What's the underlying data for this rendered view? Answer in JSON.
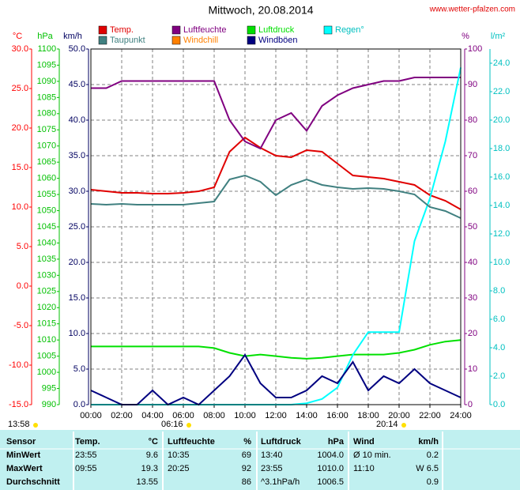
{
  "chart_data": {
    "type": "line",
    "title": "Mittwoch, 20.08.2014",
    "source": "www.wetter-pfalzen.com",
    "x": [
      0,
      1,
      2,
      3,
      4,
      5,
      6,
      7,
      8,
      9,
      10,
      11,
      12,
      13,
      14,
      15,
      16,
      17,
      18,
      19,
      20,
      21,
      22,
      23,
      24
    ],
    "xlim": [
      0,
      24
    ],
    "xticks": [
      {
        "value": 0,
        "label": "00:00"
      },
      {
        "value": 2,
        "label": "02:00"
      },
      {
        "value": 4,
        "label": "04:00"
      },
      {
        "value": 6,
        "label": "06:00"
      },
      {
        "value": 8,
        "label": "08:00"
      },
      {
        "value": 10,
        "label": "10:00"
      },
      {
        "value": 12,
        "label": "12:00"
      },
      {
        "value": 14,
        "label": "14:00"
      },
      {
        "value": 16,
        "label": "16:00"
      },
      {
        "value": 18,
        "label": "18:00"
      },
      {
        "value": 20,
        "label": "20:00"
      },
      {
        "value": 22,
        "label": "22:00"
      },
      {
        "value": 24,
        "label": "24:00"
      }
    ],
    "grid": true,
    "axes": {
      "temp": {
        "label": "°C",
        "color": "#ff0000",
        "lim": [
          -15,
          30
        ],
        "ticks": [
          {
            "value": 30,
            "label": "30.0"
          },
          {
            "value": 25,
            "label": "25.0"
          },
          {
            "value": 20,
            "label": "20.0"
          },
          {
            "value": 15,
            "label": "15.0"
          },
          {
            "value": 10,
            "label": "10.0"
          },
          {
            "value": 5,
            "label": "5.0"
          },
          {
            "value": 0,
            "label": "0.0"
          },
          {
            "value": -5,
            "label": "-5.0"
          },
          {
            "value": -10,
            "label": "-10.0"
          },
          {
            "value": -15,
            "label": "-15.0"
          }
        ]
      },
      "pressure": {
        "label": "hPa",
        "color": "#00c000",
        "lim": [
          990,
          1100
        ],
        "ticks": [
          1100,
          1095,
          1090,
          1085,
          1080,
          1075,
          1070,
          1065,
          1060,
          1055,
          1050,
          1045,
          1040,
          1035,
          1030,
          1025,
          1020,
          1015,
          1010,
          1005,
          1000,
          995,
          990
        ]
      },
      "wind": {
        "label": "km/h",
        "color": "#000060",
        "lim": [
          0,
          50
        ],
        "ticks": [
          {
            "value": 50,
            "label": "50.0"
          },
          {
            "value": 45,
            "label": "45.0"
          },
          {
            "value": 40,
            "label": "40.0"
          },
          {
            "value": 35,
            "label": "35.0"
          },
          {
            "value": 30,
            "label": "30.0"
          },
          {
            "value": 25,
            "label": "25.0"
          },
          {
            "value": 20,
            "label": "20.0"
          },
          {
            "value": 15,
            "label": "15.0"
          },
          {
            "value": 10,
            "label": "10.0"
          },
          {
            "value": 5,
            "label": "5.0"
          },
          {
            "value": 0,
            "label": "0.0"
          }
        ]
      },
      "humidity": {
        "label": "%",
        "color": "#800080",
        "lim": [
          0,
          100
        ],
        "ticks": [
          100,
          90,
          80,
          70,
          60,
          50,
          40,
          30,
          20,
          10,
          0
        ]
      },
      "rain": {
        "label": "l/m²",
        "color": "#00c0c0",
        "lim": [
          0,
          25
        ],
        "ticks": [
          {
            "value": 24,
            "label": "24.0"
          },
          {
            "value": 22,
            "label": "22.0"
          },
          {
            "value": 20,
            "label": "20.0"
          },
          {
            "value": 18,
            "label": "18.0"
          },
          {
            "value": 16,
            "label": "16.0"
          },
          {
            "value": 14,
            "label": "14.0"
          },
          {
            "value": 12,
            "label": "12.0"
          },
          {
            "value": 10,
            "label": "10.0"
          },
          {
            "value": 8,
            "label": "8.0"
          },
          {
            "value": 6,
            "label": "6.0"
          },
          {
            "value": 4,
            "label": "4.0"
          },
          {
            "value": 2,
            "label": "2.0"
          },
          {
            "value": 0,
            "label": "0.0"
          }
        ]
      }
    },
    "series": [
      {
        "name": "Temp.",
        "color": "#e00000",
        "axis": "temp",
        "values": [
          12.2,
          12.0,
          11.8,
          11.8,
          11.7,
          11.7,
          11.8,
          12.0,
          12.5,
          17.0,
          18.8,
          17.5,
          16.5,
          16.3,
          17.2,
          17.0,
          15.5,
          14.0,
          13.8,
          13.6,
          13.2,
          12.8,
          11.5,
          10.8,
          9.7
        ]
      },
      {
        "name": "Luftfeuchte",
        "color": "#800080",
        "axis": "humidity",
        "values": [
          89,
          89,
          91,
          91,
          91,
          91,
          91,
          91,
          91,
          80,
          74,
          72,
          80,
          82,
          77,
          84,
          87,
          89,
          90,
          91,
          91,
          92,
          92,
          92,
          92
        ]
      },
      {
        "name": "Luftdruck",
        "color": "#00e000",
        "axis": "pressure",
        "values": [
          1008,
          1008,
          1008,
          1008,
          1008,
          1008,
          1008,
          1008,
          1007.5,
          1006,
          1005,
          1005.5,
          1005,
          1004.5,
          1004.2,
          1004.5,
          1005,
          1005.5,
          1005.5,
          1005.5,
          1006,
          1007,
          1008.5,
          1009.5,
          1010
        ]
      },
      {
        "name": "Regen°",
        "color": "#00ffff",
        "axis": "rain",
        "values": [
          0,
          0,
          0,
          0,
          0,
          0,
          0,
          0,
          0,
          0,
          0,
          0,
          0,
          0,
          0.1,
          0.4,
          1.2,
          3.5,
          5.1,
          5.1,
          5.1,
          11.5,
          14.5,
          18.5,
          23.7
        ]
      },
      {
        "name": "Taupunkt",
        "color": "#408080",
        "axis": "temp",
        "values": [
          10.4,
          10.3,
          10.4,
          10.3,
          10.3,
          10.3,
          10.3,
          10.5,
          10.7,
          13.5,
          14.0,
          13.2,
          11.5,
          12.8,
          13.5,
          12.8,
          12.5,
          12.3,
          12.4,
          12.3,
          12.0,
          11.6,
          10.0,
          9.5,
          8.6
        ]
      },
      {
        "name": "Windchill",
        "color": "#ff8000",
        "axis": "temp",
        "values": [
          null,
          null,
          null,
          null,
          null,
          null,
          null,
          null,
          null,
          null,
          null,
          null,
          null,
          null,
          null,
          null,
          null,
          null,
          null,
          null,
          null,
          null,
          null,
          null,
          null
        ]
      },
      {
        "name": "Windböen",
        "color": "#000080",
        "axis": "wind",
        "values": [
          2,
          1,
          0,
          0,
          2,
          0,
          1,
          0,
          2,
          4,
          7,
          3,
          1,
          1,
          2,
          4,
          3,
          6,
          2,
          4,
          3,
          5,
          3,
          2,
          1
        ]
      }
    ],
    "annotations": [
      "13:58",
      "06:16",
      "20:14"
    ]
  },
  "table": {
    "header": [
      "Sensor",
      "Temp.",
      "°C",
      "Luftfeuchte",
      "%",
      "Luftdruck",
      "hPa",
      "Wind",
      "km/h"
    ],
    "rows": [
      [
        "MinWert",
        "23:55",
        "9.6",
        "10:35",
        "69",
        "13:40",
        "1004.0",
        "Ø 10 min.",
        "0.2"
      ],
      [
        "MaxWert",
        "09:55",
        "19.3",
        "20:25",
        "92",
        "23:55",
        "1010.0",
        "11:10",
        "W 6.5"
      ],
      [
        "Durchschnitt",
        "",
        "13.55",
        "",
        "86",
        "^3.1hPa/h",
        "1006.5",
        "",
        "0.9"
      ]
    ]
  }
}
